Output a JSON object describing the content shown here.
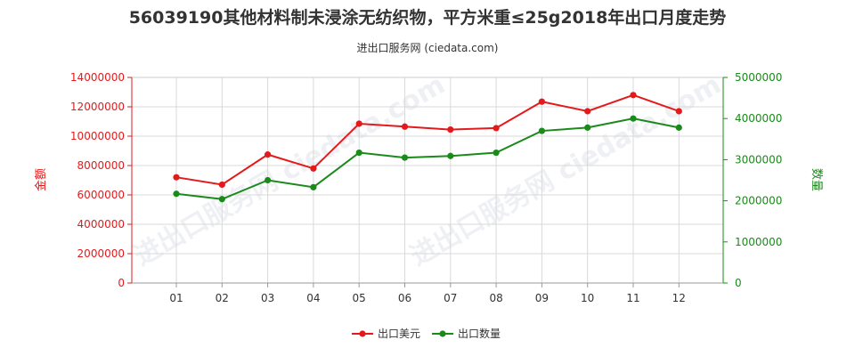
{
  "chart_data": {
    "type": "line",
    "title": "56039190其他材料制未浸涂无纺织物，平方米重≤25g2018年出口月度走势",
    "subtitle": "进出口服务网 (ciedata.com)",
    "categories": [
      "01",
      "02",
      "03",
      "04",
      "05",
      "06",
      "07",
      "08",
      "09",
      "10",
      "11",
      "12"
    ],
    "ylabel_left": "金额",
    "ylabel_right": "数量",
    "ylim_left": [
      0,
      14000000
    ],
    "ylim_right": [
      0,
      5000000
    ],
    "yticks_left": [
      "0",
      "2000000",
      "4000000",
      "6000000",
      "8000000",
      "10000000",
      "12000000",
      "14000000"
    ],
    "yticks_right": [
      "0",
      "1000000",
      "2000000",
      "3000000",
      "4000000",
      "5000000"
    ],
    "series": [
      {
        "name": "出口美元",
        "axis": "left",
        "color": "#e31a1c",
        "values": [
          7200000,
          6700000,
          8750000,
          7800000,
          10850000,
          10650000,
          10450000,
          10550000,
          12350000,
          11700000,
          12800000,
          11700000
        ]
      },
      {
        "name": "出口数量",
        "axis": "right",
        "color": "#1a8a1a",
        "values": [
          2170000,
          2040000,
          2500000,
          2330000,
          3170000,
          3050000,
          3090000,
          3170000,
          3700000,
          3780000,
          4000000,
          3780000
        ]
      }
    ],
    "grid": true,
    "legend_position": "bottom-center",
    "watermark": "进出口服务网 ciedata.com"
  }
}
